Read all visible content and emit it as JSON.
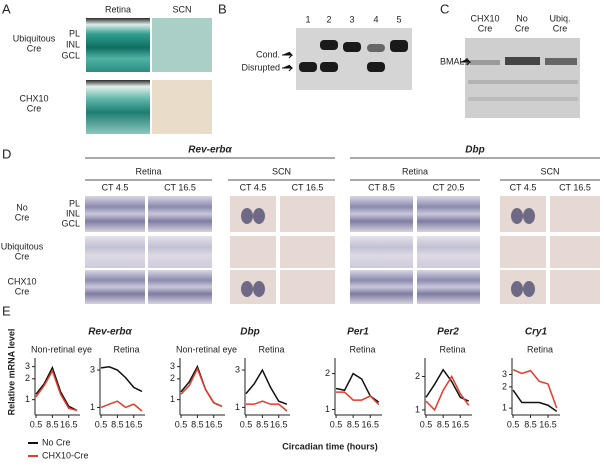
{
  "panel_labels": [
    "A",
    "B",
    "C",
    "D",
    "E"
  ],
  "panel_a": {
    "columns": [
      "Retina",
      "SCN"
    ],
    "rows": [
      [
        "Ubiquitous",
        "Cre"
      ],
      [
        "CHX10",
        "Cre"
      ]
    ],
    "layers": [
      "PL",
      "INL",
      "GCL"
    ]
  },
  "panel_b": {
    "lanes": [
      "1",
      "2",
      "3",
      "4",
      "5"
    ],
    "bands": [
      "Cond.",
      "Disrupted"
    ]
  },
  "panel_c": {
    "columns": [
      [
        "CHX10",
        "Cre"
      ],
      [
        "No",
        "Cre"
      ],
      [
        "Ubiq.",
        "Cre"
      ]
    ],
    "protein": "BMAL1"
  },
  "panel_d": {
    "genes": [
      {
        "name": "Rev-erbα",
        "groups": [
          {
            "tissue": "Retina",
            "times": [
              "CT 4.5",
              "CT 16.5"
            ]
          },
          {
            "tissue": "SCN",
            "times": [
              "CT 4.5",
              "CT 16.5"
            ]
          }
        ]
      },
      {
        "name": "Dbp",
        "groups": [
          {
            "tissue": "Retina",
            "times": [
              "CT 8.5",
              "CT 20.5"
            ]
          },
          {
            "tissue": "SCN",
            "times": [
              "CT 4.5",
              "CT 16.5"
            ]
          }
        ]
      }
    ],
    "rows": [
      [
        "No",
        "Cre"
      ],
      [
        "Ubiquitous",
        "Cre"
      ],
      [
        "CHX10",
        "Cre"
      ]
    ],
    "layers": [
      "PL",
      "INL",
      "GCL"
    ]
  },
  "panel_e": {
    "y_label": "Relative mRNA level",
    "x_label": "Circadian time (hours)",
    "legend": [
      {
        "name": "No Cre",
        "color": "#111111"
      },
      {
        "name": "CHX10-Cre",
        "color": "#e8392b"
      }
    ]
  },
  "chart_data": [
    {
      "type": "line",
      "title": "Rev-erbα",
      "subtitle": "Non-retinal eye",
      "log_y": true,
      "x": [
        0.5,
        4.5,
        8.5,
        12.5,
        16.5,
        20.5
      ],
      "xlim": [
        0,
        22
      ],
      "xticks": [
        0.5,
        8.5,
        16.5
      ],
      "ylim": [
        0.6,
        3.5
      ],
      "yticks": [
        1,
        2,
        3
      ],
      "series": [
        {
          "color": "#111111",
          "values": [
            1.2,
            1.7,
            2.9,
            1.3,
            0.8,
            0.7
          ]
        },
        {
          "color": "#e8392b",
          "values": [
            1.1,
            1.6,
            2.6,
            1.2,
            0.75,
            0.7
          ]
        }
      ]
    },
    {
      "type": "line",
      "subtitle": "Retina",
      "log_y": true,
      "x": [
        0.5,
        4.5,
        8.5,
        12.5,
        16.5,
        20.5
      ],
      "xlim": [
        0,
        22
      ],
      "xticks": [
        0.5,
        8.5,
        16.5
      ],
      "ylim": [
        0.8,
        3.8
      ],
      "yticks": [
        1,
        3
      ],
      "series": [
        {
          "color": "#111111",
          "values": [
            3.2,
            3.3,
            3.0,
            2.4,
            1.8,
            1.6
          ]
        },
        {
          "color": "#e8392b",
          "values": [
            1.0,
            1.1,
            1.2,
            1.0,
            1.1,
            0.9
          ]
        }
      ]
    },
    {
      "type": "line",
      "title": "Dbp",
      "subtitle": "Non-retinal eye",
      "log_y": true,
      "x": [
        0.5,
        4.5,
        8.5,
        12.5,
        16.5,
        20.5
      ],
      "xlim": [
        0,
        22
      ],
      "xticks": [
        0.5,
        8.5,
        16.5
      ],
      "ylim": [
        0.6,
        3.5
      ],
      "yticks": [
        1,
        2,
        3
      ],
      "series": [
        {
          "color": "#111111",
          "values": [
            1.3,
            1.8,
            3.0,
            1.4,
            0.9,
            0.8
          ]
        },
        {
          "color": "#e8392b",
          "values": [
            1.2,
            1.6,
            2.8,
            1.4,
            0.9,
            0.8
          ]
        }
      ]
    },
    {
      "type": "line",
      "subtitle": "Retina",
      "log_y": true,
      "x": [
        0.5,
        4.5,
        8.5,
        12.5,
        16.5,
        20.5
      ],
      "xlim": [
        0,
        22
      ],
      "xticks": [
        0.5,
        8.5,
        16.5
      ],
      "ylim": [
        0.8,
        3.8
      ],
      "yticks": [
        1,
        3
      ],
      "series": [
        {
          "color": "#111111",
          "values": [
            1.5,
            2.0,
            3.0,
            1.8,
            1.2,
            1.1
          ]
        },
        {
          "color": "#e8392b",
          "values": [
            1.1,
            1.1,
            1.2,
            1.1,
            1.1,
            0.9
          ]
        }
      ]
    },
    {
      "type": "line",
      "title": "Per1",
      "subtitle": "Retina",
      "log_y": true,
      "x": [
        0.5,
        4.5,
        8.5,
        12.5,
        16.5,
        20.5
      ],
      "xlim": [
        0,
        22
      ],
      "xticks": [
        0.5,
        8.5,
        16.5
      ],
      "ylim": [
        0.9,
        2.5
      ],
      "yticks": [
        1,
        2
      ],
      "series": [
        {
          "color": "#111111",
          "values": [
            1.5,
            1.45,
            2.0,
            1.8,
            1.3,
            1.15
          ]
        },
        {
          "color": "#e8392b",
          "values": [
            1.4,
            1.4,
            1.2,
            1.2,
            1.3,
            1.1
          ]
        }
      ]
    },
    {
      "type": "line",
      "title": "Per2",
      "subtitle": "Retina",
      "log_y": true,
      "x": [
        0.5,
        4.5,
        8.5,
        12.5,
        16.5,
        20.5
      ],
      "xlim": [
        0,
        22
      ],
      "xticks": [
        0.5,
        8.5,
        16.5
      ],
      "ylim": [
        0.9,
        2.7
      ],
      "yticks": [
        1,
        2
      ],
      "series": [
        {
          "color": "#111111",
          "values": [
            1.3,
            1.7,
            2.3,
            1.8,
            1.3,
            1.2
          ]
        },
        {
          "color": "#e8392b",
          "values": [
            1.2,
            1.0,
            1.5,
            2.0,
            1.4,
            1.1
          ]
        }
      ]
    },
    {
      "type": "line",
      "title": "Cry1",
      "subtitle": "Retina",
      "log_y": true,
      "x": [
        0.5,
        4.5,
        8.5,
        12.5,
        16.5,
        20.5
      ],
      "xlim": [
        0,
        22
      ],
      "xticks": [
        0.5,
        8.5,
        16.5
      ],
      "ylim": [
        0.8,
        4.5
      ],
      "yticks": [
        1,
        2,
        3
      ],
      "series": [
        {
          "color": "#111111",
          "values": [
            1.8,
            1.2,
            1.2,
            1.2,
            1.1,
            0.9
          ]
        },
        {
          "color": "#e8392b",
          "values": [
            3.5,
            3.1,
            3.4,
            2.4,
            2.2,
            1.0
          ]
        }
      ]
    }
  ]
}
